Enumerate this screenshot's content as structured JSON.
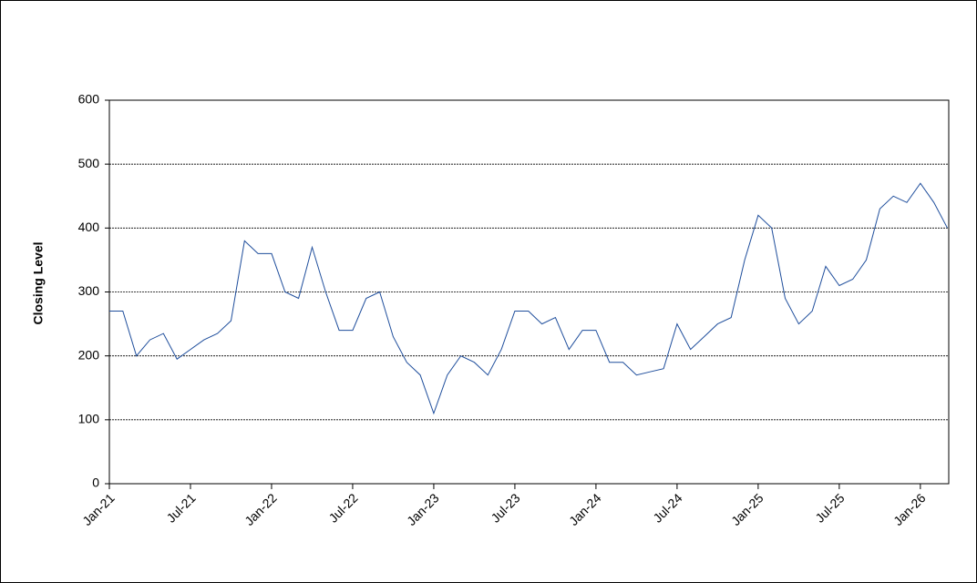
{
  "chart_data": {
    "type": "line",
    "y_label": "Closing Level",
    "x": [
      "2021-01",
      "2021-02",
      "2021-03",
      "2021-04",
      "2021-05",
      "2021-06",
      "2021-07",
      "2021-08",
      "2021-09",
      "2021-10",
      "2021-11",
      "2021-12",
      "2022-01",
      "2022-02",
      "2022-03",
      "2022-04",
      "2022-05",
      "2022-06",
      "2022-07",
      "2022-08",
      "2022-09",
      "2022-10",
      "2022-11",
      "2022-12",
      "2023-01",
      "2023-02",
      "2023-03",
      "2023-04",
      "2023-05",
      "2023-06",
      "2023-07",
      "2023-08",
      "2023-09",
      "2023-10",
      "2023-11",
      "2023-12",
      "2024-01",
      "2024-02",
      "2024-03",
      "2024-04",
      "2024-05",
      "2024-06",
      "2024-07",
      "2024-08",
      "2024-09",
      "2024-10",
      "2024-11",
      "2024-12",
      "2025-01",
      "2025-02",
      "2025-03",
      "2025-04",
      "2025-05",
      "2025-06",
      "2025-07",
      "2025-08",
      "2025-09",
      "2025-10",
      "2025-11",
      "2025-12",
      "2026-01",
      "2026-02",
      "2026-03"
    ],
    "series": [
      {
        "color": "#1f4e9c",
        "values": [
          270,
          270,
          200,
          225,
          235,
          195,
          210,
          225,
          235,
          255,
          380,
          360,
          360,
          300,
          290,
          370,
          300,
          240,
          240,
          290,
          300,
          230,
          190,
          170,
          110,
          170,
          200,
          190,
          170,
          210,
          270,
          270,
          250,
          260,
          210,
          240,
          240,
          190,
          190,
          170,
          175,
          180,
          250,
          210,
          230,
          250,
          260,
          350,
          420,
          400,
          290,
          250,
          270,
          340,
          310,
          320,
          350,
          430,
          450,
          440,
          470,
          440,
          400
        ]
      }
    ],
    "xlim": [
      "2021-01",
      "2026-03"
    ],
    "xticks": [
      {
        "value": "2021-01",
        "label": "Jan-21"
      },
      {
        "value": "2021-07",
        "label": "Jul-21"
      },
      {
        "value": "2022-01",
        "label": "Jan-22"
      },
      {
        "value": "2022-07",
        "label": "Jul-22"
      },
      {
        "value": "2023-01",
        "label": "Jan-23"
      },
      {
        "value": "2023-07",
        "label": "Jul-23"
      },
      {
        "value": "2024-01",
        "label": "Jan-24"
      },
      {
        "value": "2024-07",
        "label": "Jul-24"
      },
      {
        "value": "2025-01",
        "label": "Jan-25"
      },
      {
        "value": "2025-07",
        "label": "Jul-25"
      },
      {
        "value": "2026-01",
        "label": "Jan-26"
      }
    ],
    "ylim": [
      0,
      600
    ],
    "yticks": [
      0,
      100,
      200,
      300,
      400,
      500,
      600
    ],
    "grid": true
  }
}
